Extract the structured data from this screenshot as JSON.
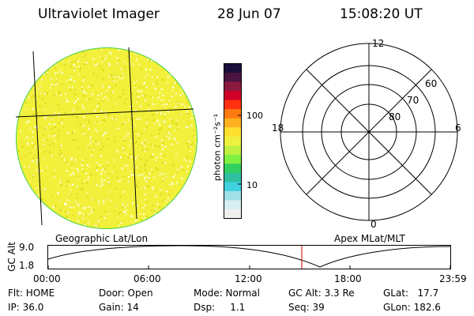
{
  "header": {
    "title": "Ultraviolet Imager",
    "date": "28 Jun 07",
    "time": "15:08:20 UT"
  },
  "colorbar": {
    "unit_label": "photon cm⁻²s⁻¹",
    "ticks": [
      "100",
      "10"
    ],
    "colors": [
      "#1a0f3c",
      "#4a1540",
      "#8c1a40",
      "#d00028",
      "#ff3010",
      "#ff7a10",
      "#ffb020",
      "#ffe030",
      "#f0f040",
      "#c0f040",
      "#80f040",
      "#30d060",
      "#30c0a0",
      "#40d0e0",
      "#a0e0e8",
      "#d8eef0",
      "#f0f0f0"
    ]
  },
  "polar_plot": {
    "mlt_labels": [
      "12",
      "18",
      "6",
      "0"
    ],
    "lat_labels": [
      "60",
      "70",
      "80"
    ]
  },
  "timeline": {
    "left_title": "Geographic Lat/Lon",
    "right_title": "Apex MLat/MLT",
    "yaxis_label": "GC Alt",
    "y_ticks": [
      "9.0",
      "1.8"
    ],
    "x_ticks": [
      "00:00",
      "06:00",
      "12:00",
      "18:00",
      "23:59"
    ],
    "current_marker_color": "#d00000"
  },
  "info": {
    "flt": "Flt: HOME",
    "ip": "IP: 36.0",
    "door": "Door: Open",
    "gain": "Gain: 14",
    "mode": "Mode:  Normal",
    "dsp": "Dsp:     1.1",
    "gcalt": "GC Alt: 3.3 Re",
    "seq": "Seq: 39",
    "glat": "GLat:   17.7",
    "glon": "GLon: 182.6"
  }
}
